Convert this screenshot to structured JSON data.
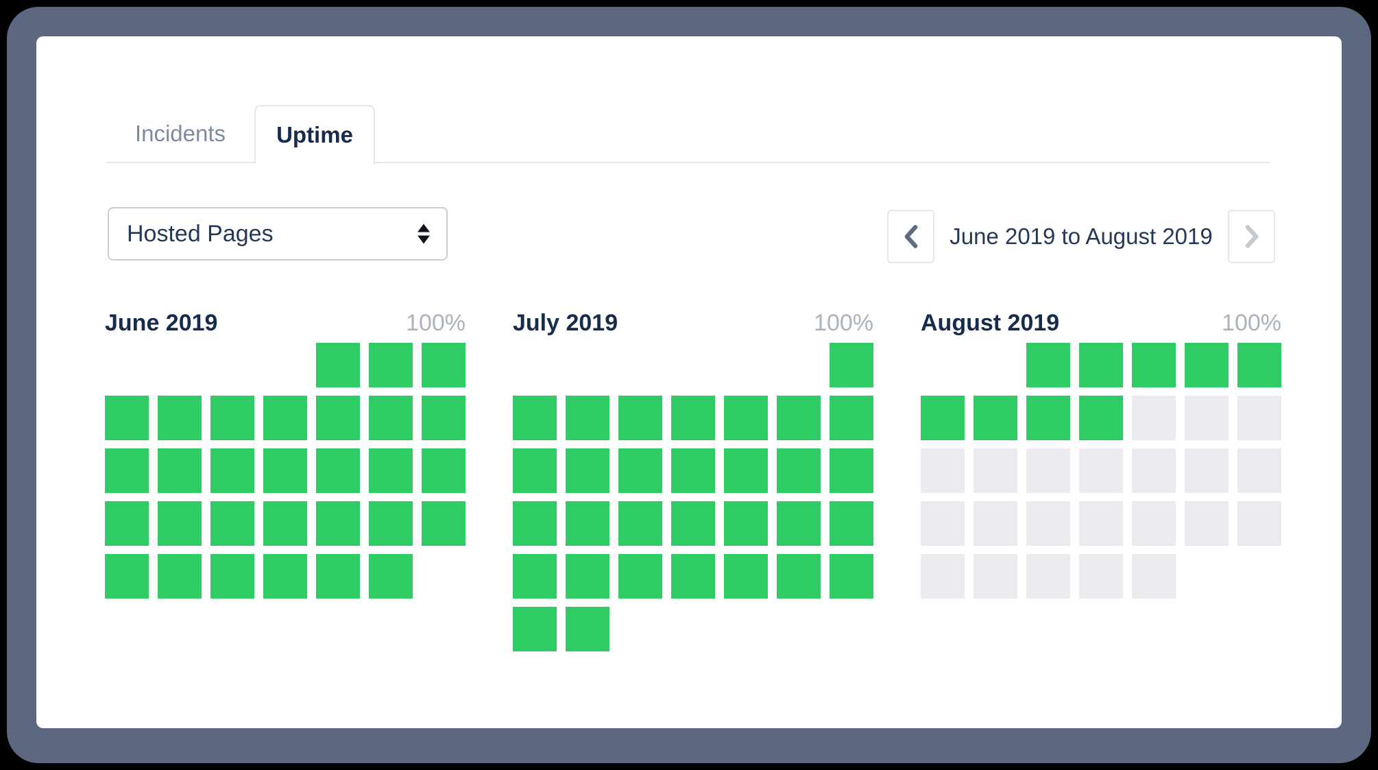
{
  "colors": {
    "frame_slate": "#5B6880",
    "uptime_green": "#2FCC66",
    "future_gray": "#E9EBEF",
    "title_navy": "#172B4D",
    "muted_tab": "#7E8AA0",
    "percent_gray": "#A9B2BF"
  },
  "tabs": [
    {
      "label": "Incidents",
      "active": false
    },
    {
      "label": "Uptime",
      "active": true
    }
  ],
  "page_selector": {
    "value": "Hosted Pages"
  },
  "date_nav": {
    "label": "June 2019 to August 2019",
    "prev_icon": "chevron-left",
    "next_icon": "chevron-right"
  },
  "cell_legend": {
    "G": "up (green)",
    "E": "future/empty (gray)",
    ".": "no day (blank)"
  },
  "months": [
    {
      "title": "June 2019",
      "uptime": "100%",
      "weeks": [
        "....GGG",
        "GGGGGGG",
        "GGGGGGG",
        "GGGGGGG",
        "GGGGGG."
      ]
    },
    {
      "title": "July 2019",
      "uptime": "100%",
      "weeks": [
        "......G",
        "GGGGGGG",
        "GGGGGGG",
        "GGGGGGG",
        "GGGGGGG",
        "GG....."
      ]
    },
    {
      "title": "August 2019",
      "uptime": "100%",
      "weeks": [
        "..GGGGG",
        "GGGGEEE",
        "EEEEEEE",
        "EEEEEEE",
        "EEEEE.."
      ]
    }
  ]
}
